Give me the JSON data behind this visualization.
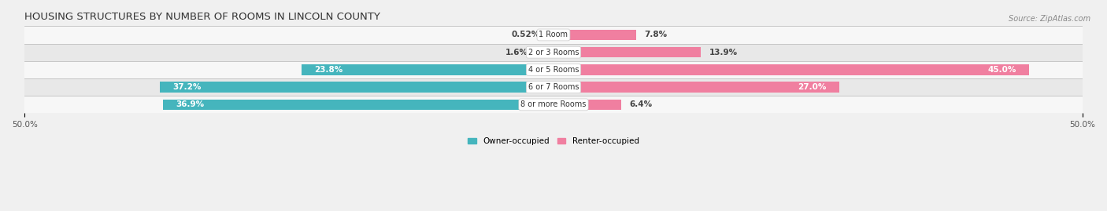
{
  "title": "HOUSING STRUCTURES BY NUMBER OF ROOMS IN LINCOLN COUNTY",
  "source": "Source: ZipAtlas.com",
  "categories": [
    "1 Room",
    "2 or 3 Rooms",
    "4 or 5 Rooms",
    "6 or 7 Rooms",
    "8 or more Rooms"
  ],
  "owner_values": [
    0.52,
    1.6,
    23.8,
    37.2,
    36.9
  ],
  "renter_values": [
    7.8,
    13.9,
    45.0,
    27.0,
    6.4
  ],
  "owner_color": "#45b5bd",
  "renter_color": "#f07fa0",
  "owner_label": "Owner-occupied",
  "renter_label": "Renter-occupied",
  "axis_max": 50.0,
  "bar_height": 0.6,
  "background_color": "#f0f0f0",
  "row_colors": [
    "#f7f7f7",
    "#e8e8e8"
  ],
  "title_fontsize": 9.5,
  "label_fontsize": 7.5,
  "category_fontsize": 7.0,
  "source_fontsize": 7.0
}
